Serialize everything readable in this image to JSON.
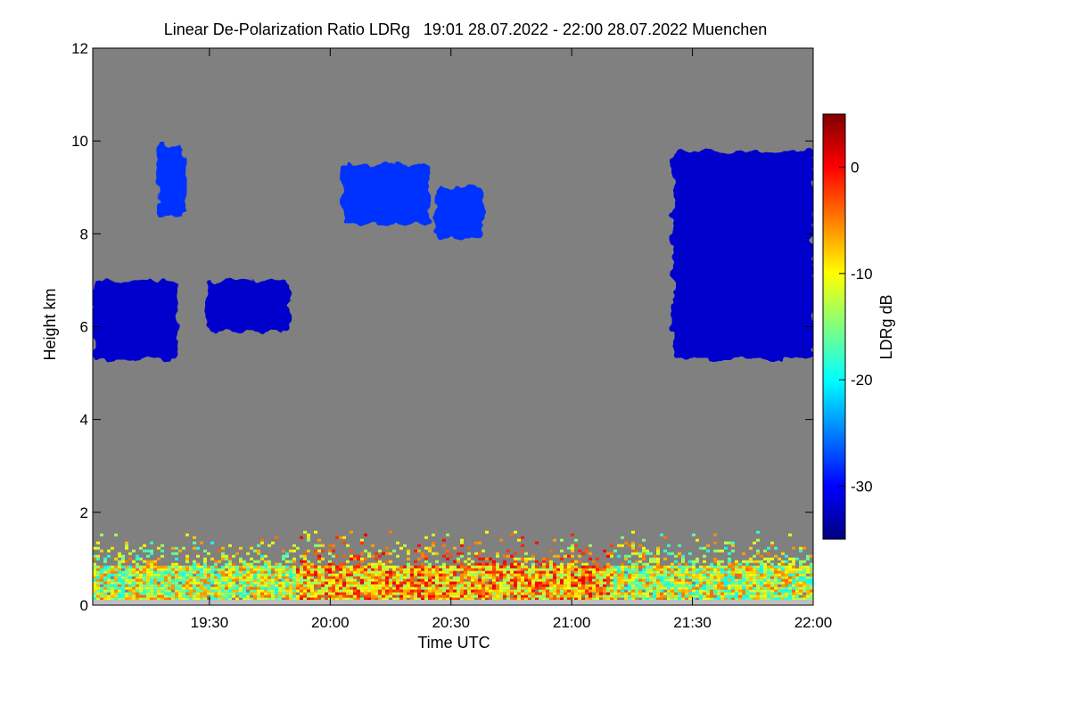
{
  "chart_data": {
    "type": "heatmap",
    "title": "Linear De-Polarization Ratio LDRg   19:01 28.07.2022 - 22:00 28.07.2022 Muenchen",
    "xlabel": "Time UTC",
    "ylabel": "Height km",
    "colorbar_label": "LDRg dB",
    "x_ticks": [
      "19:30",
      "20:00",
      "20:30",
      "21:00",
      "21:30",
      "22:00"
    ],
    "x_tick_minutes": [
      1170,
      1200,
      1230,
      1260,
      1290,
      1320
    ],
    "xlim_minutes": [
      1141,
      1320
    ],
    "y_ticks": [
      "0",
      "2",
      "4",
      "6",
      "8",
      "10",
      "12"
    ],
    "y_tick_values": [
      0,
      2,
      4,
      6,
      8,
      10,
      12
    ],
    "ylim": [
      0,
      12
    ],
    "colorbar_ticks": [
      "0",
      "-10",
      "-20",
      "-30"
    ],
    "colorbar_tick_values": [
      0,
      -10,
      -20,
      -30
    ],
    "colorbar_range": [
      -35,
      5
    ],
    "background_color": "#808080",
    "colormap": [
      "#00007f",
      "#0000ff",
      "#007fff",
      "#00ffff",
      "#7fff7f",
      "#ffff00",
      "#ff7f00",
      "#ff0000",
      "#7f0000"
    ],
    "regions": [
      {
        "name": "cirrus-left",
        "x_minutes": [
          1141,
          1162
        ],
        "height_km": [
          5.3,
          7.0
        ],
        "ldr_db": -32
      },
      {
        "name": "cirrus-left-2",
        "x_minutes": [
          1169,
          1190
        ],
        "height_km": [
          5.9,
          7.0
        ],
        "ldr_db": -32
      },
      {
        "name": "cirrus-upper-1",
        "x_minutes": [
          1157,
          1164
        ],
        "height_km": [
          8.4,
          9.9
        ],
        "ldr_db": -28
      },
      {
        "name": "cirrus-upper-2",
        "x_minutes": [
          1203,
          1225
        ],
        "height_km": [
          8.2,
          9.5
        ],
        "ldr_db": -28
      },
      {
        "name": "cirrus-upper-3",
        "x_minutes": [
          1226,
          1238
        ],
        "height_km": [
          7.9,
          9.0
        ],
        "ldr_db": -28
      },
      {
        "name": "cirrus-right",
        "x_minutes": [
          1285,
          1320
        ],
        "height_km": [
          5.3,
          9.8
        ],
        "ldr_db": -32
      },
      {
        "name": "boundary-layer",
        "x_minutes": [
          1141,
          1320
        ],
        "height_km": [
          0,
          1.6
        ],
        "ldr_db": -12
      }
    ]
  }
}
